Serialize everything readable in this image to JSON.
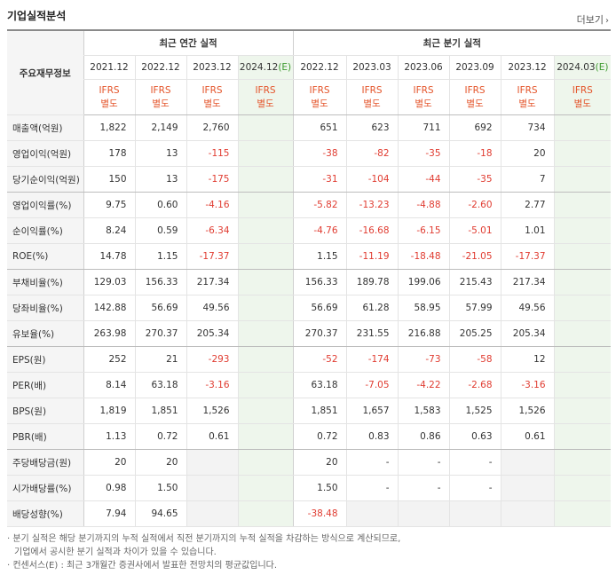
{
  "title": "기업실적분석",
  "more_label": "더보기",
  "header": {
    "corner": "주요재무정보",
    "annual_group": "최근 연간 실적",
    "quarter_group": "최근 분기 실적",
    "annual_periods": [
      "2021.12",
      "2022.12",
      "2023.12",
      "2024.12(E)"
    ],
    "quarter_periods": [
      "2022.12",
      "2023.03",
      "2023.06",
      "2023.09",
      "2023.12",
      "2024.03(E)"
    ],
    "basis_line1": "IFRS",
    "basis_line2": "별도"
  },
  "rows": [
    {
      "label": "매출액(억원)",
      "annual": [
        "1,822",
        "2,149",
        "2,760",
        ""
      ],
      "quarter": [
        "651",
        "623",
        "711",
        "692",
        "734",
        ""
      ]
    },
    {
      "label": "영업이익(억원)",
      "annual": [
        "178",
        "13",
        "-115",
        ""
      ],
      "quarter": [
        "-38",
        "-82",
        "-35",
        "-18",
        "20",
        ""
      ]
    },
    {
      "label": "당기순이익(억원)",
      "annual": [
        "150",
        "13",
        "-175",
        ""
      ],
      "quarter": [
        "-31",
        "-104",
        "-44",
        "-35",
        "7",
        ""
      ]
    },
    {
      "label": "영업이익률(%)",
      "annual": [
        "9.75",
        "0.60",
        "-4.16",
        ""
      ],
      "quarter": [
        "-5.82",
        "-13.23",
        "-4.88",
        "-2.60",
        "2.77",
        ""
      ]
    },
    {
      "label": "순이익률(%)",
      "annual": [
        "8.24",
        "0.59",
        "-6.34",
        ""
      ],
      "quarter": [
        "-4.76",
        "-16.68",
        "-6.15",
        "-5.01",
        "1.01",
        ""
      ]
    },
    {
      "label": "ROE(%)",
      "annual": [
        "14.78",
        "1.15",
        "-17.37",
        ""
      ],
      "quarter": [
        "1.15",
        "-11.19",
        "-18.48",
        "-21.05",
        "-17.37",
        ""
      ]
    },
    {
      "label": "부채비율(%)",
      "annual": [
        "129.03",
        "156.33",
        "217.34",
        ""
      ],
      "quarter": [
        "156.33",
        "189.78",
        "199.06",
        "215.43",
        "217.34",
        ""
      ]
    },
    {
      "label": "당좌비율(%)",
      "annual": [
        "142.88",
        "56.69",
        "49.56",
        ""
      ],
      "quarter": [
        "56.69",
        "61.28",
        "58.95",
        "57.99",
        "49.56",
        ""
      ]
    },
    {
      "label": "유보율(%)",
      "annual": [
        "263.98",
        "270.37",
        "205.34",
        ""
      ],
      "quarter": [
        "270.37",
        "231.55",
        "216.88",
        "205.25",
        "205.34",
        ""
      ]
    },
    {
      "label": "EPS(원)",
      "annual": [
        "252",
        "21",
        "-293",
        ""
      ],
      "quarter": [
        "-52",
        "-174",
        "-73",
        "-58",
        "12",
        ""
      ]
    },
    {
      "label": "PER(배)",
      "annual": [
        "8.14",
        "63.18",
        "-3.16",
        ""
      ],
      "quarter": [
        "63.18",
        "-7.05",
        "-4.22",
        "-2.68",
        "-3.16",
        ""
      ]
    },
    {
      "label": "BPS(원)",
      "annual": [
        "1,819",
        "1,851",
        "1,526",
        ""
      ],
      "quarter": [
        "1,851",
        "1,657",
        "1,583",
        "1,525",
        "1,526",
        ""
      ]
    },
    {
      "label": "PBR(배)",
      "annual": [
        "1.13",
        "0.72",
        "0.61",
        ""
      ],
      "quarter": [
        "0.72",
        "0.83",
        "0.86",
        "0.63",
        "0.61",
        ""
      ]
    },
    {
      "label": "주당배당금(원)",
      "annual": [
        "20",
        "20",
        "",
        ""
      ],
      "quarter": [
        "20",
        "-",
        "-",
        "-",
        "",
        ""
      ]
    },
    {
      "label": "시가배당률(%)",
      "annual": [
        "0.98",
        "1.50",
        "",
        ""
      ],
      "quarter": [
        "1.50",
        "-",
        "-",
        "-",
        "",
        ""
      ]
    },
    {
      "label": "배당성향(%)",
      "annual": [
        "7.94",
        "94.65",
        "",
        ""
      ],
      "quarter": [
        "-38.48",
        "",
        "",
        "",
        "",
        ""
      ]
    }
  ],
  "notes": [
    "· 분기 실적은 해당 분기까지의 누적 실적에서 직전 분기까지의 누적 실적을 차감하는 방식으로 계산되므로,",
    "기업에서 공시한 분기 실적과 차이가 있을 수 있습니다.",
    "· 컨센서스(E) : 최근 3개월간 증권사에서 발표한 전망치의 평균값입니다."
  ],
  "colors": {
    "ifrs": "#e4542a",
    "negative": "#e03c31",
    "estimate_bg": "#eef6ec",
    "estimate_mark": "#3c9a2e"
  }
}
